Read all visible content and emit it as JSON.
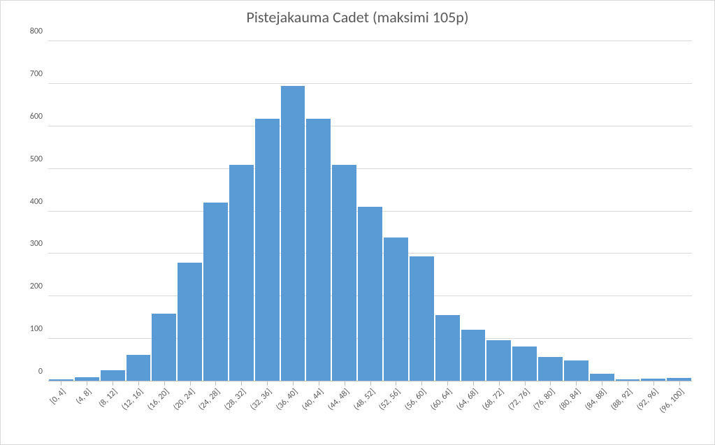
{
  "chart": {
    "type": "histogram",
    "title": "Pistejakauma Cadet (maksimi 105p)",
    "title_fontsize": 22,
    "title_color": "#595959",
    "background_color": "#ffffff",
    "border_color": "#d9d9d9",
    "grid_color": "#d9d9d9",
    "axis_line_color": "#bfbfbf",
    "bar_color": "#5b9bd5",
    "label_color": "#595959",
    "axis_label_fontsize": 12,
    "ylim": [
      0,
      800
    ],
    "ytick_step": 100,
    "yticks": [
      "0",
      "100",
      "200",
      "300",
      "400",
      "500",
      "600",
      "700",
      "800"
    ],
    "categories": [
      "[0, 4]",
      "(4, 8]",
      "(8, 12]",
      "(12, 16]",
      "(16, 20]",
      "(20, 24]",
      "(24, 28]",
      "(28, 32]",
      "(32, 36]",
      "(36, 40]",
      "(40, 44]",
      "(44, 48]",
      "(48, 52]",
      "(52, 56]",
      "(56, 60]",
      "(60, 64]",
      "(64, 68]",
      "(68, 72]",
      "(72, 76]",
      "(76, 80]",
      "(80, 84]",
      "(84, 88]",
      "(88, 92]",
      "(92, 96]",
      "(96, 100]"
    ],
    "values": [
      5,
      10,
      27,
      62,
      160,
      280,
      420,
      510,
      618,
      695,
      618,
      510,
      410,
      338,
      294,
      156,
      122,
      97,
      82,
      57,
      50,
      18,
      5,
      7,
      8
    ],
    "bar_gap_ratio": 0.06
  }
}
